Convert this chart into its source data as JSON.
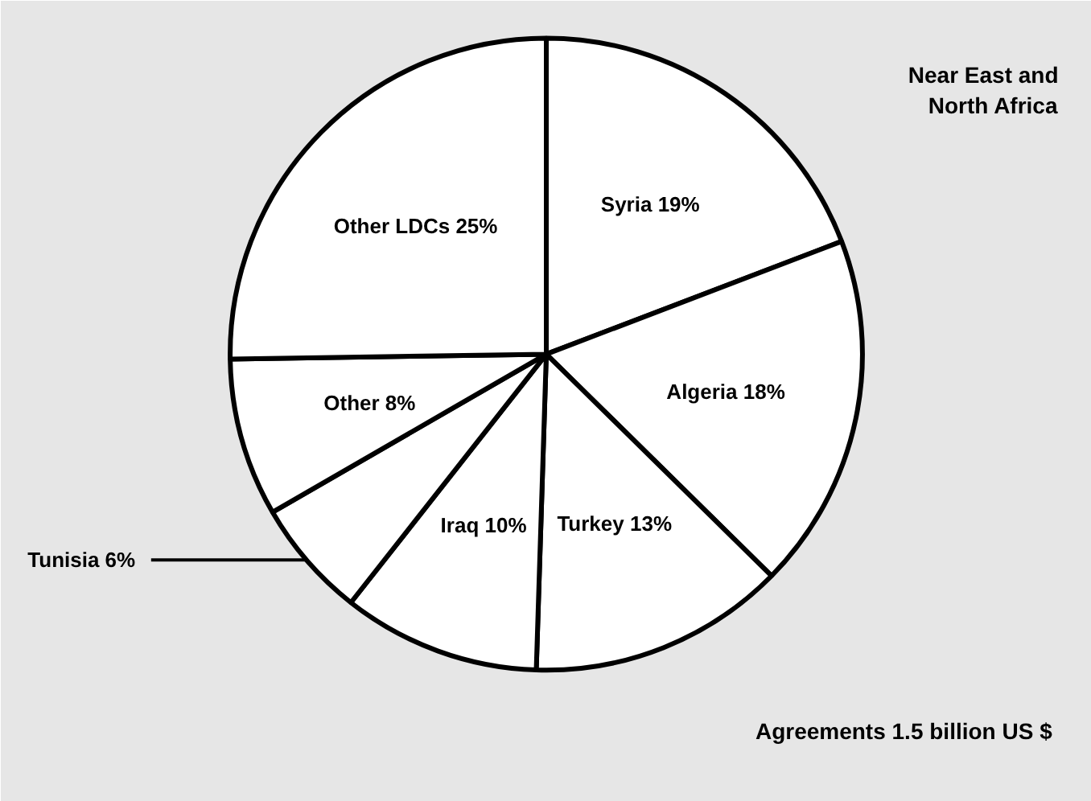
{
  "chart_data": {
    "type": "pie",
    "title": "Near East and\nNorth Africa",
    "categories": [
      "Syria",
      "Algeria",
      "Turkey",
      "Iraq",
      "Tunisia",
      "Other",
      "Other LDCs"
    ],
    "values": [
      19,
      18,
      13,
      10,
      6,
      8,
      25
    ],
    "value_labels": [
      "19%",
      "18%",
      "13%",
      "10%",
      "6%",
      "8%",
      "25%"
    ],
    "colors": [
      "#ffffff",
      "#ffffff",
      "#ffffff",
      "#ffffff",
      "#ffffff",
      "#ffffff",
      "#ffffff"
    ],
    "annotations": [
      "Agreements 1.5 billion US $"
    ]
  }
}
